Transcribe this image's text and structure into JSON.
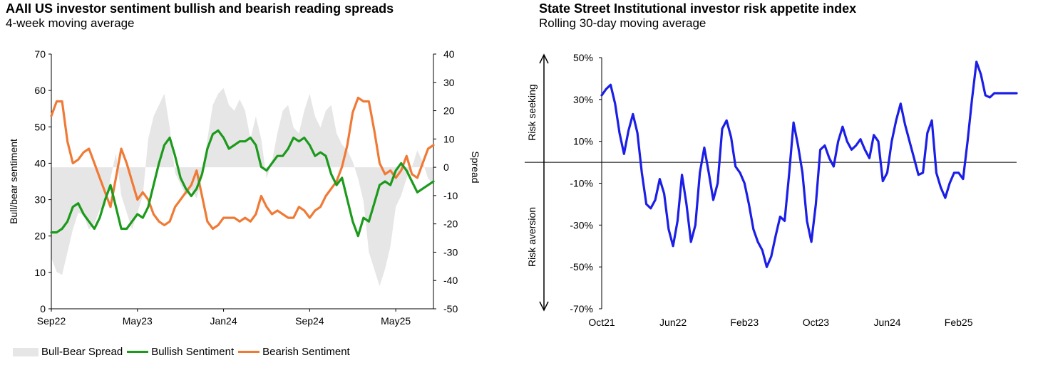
{
  "chart_data": [
    {
      "type": "line",
      "title": "AAII US investor sentiment bullish and bearish reading spreads",
      "subtitle": "4-week moving average",
      "ylabel": "Bull/bear sentiment",
      "y2label": "Spread",
      "ylim": [
        0,
        70
      ],
      "y2lim": [
        -50,
        40
      ],
      "yticks": [
        "0",
        "10",
        "20",
        "30",
        "40",
        "50",
        "60",
        "70"
      ],
      "y2ticks": [
        "-50",
        "-40",
        "-30",
        "-20",
        "-10",
        "0",
        "10",
        "20",
        "30",
        "40"
      ],
      "xticks": [
        "Sep22",
        "May23",
        "Jan24",
        "Sep24",
        "May25"
      ],
      "xtick_positions": [
        0,
        8,
        16,
        24,
        32
      ],
      "xlim": [
        0,
        35.5
      ],
      "series": [
        {
          "name": "Bull-Bear Spread",
          "color": "#e6e6e6",
          "style": "area",
          "axis": "right",
          "x": [
            0,
            0.5,
            1,
            1.5,
            2,
            2.5,
            3,
            3.5,
            4,
            4.5,
            5,
            5.5,
            6,
            6.5,
            7,
            7.5,
            8,
            8.5,
            9,
            9.5,
            10,
            10.5,
            11,
            11.5,
            12,
            12.5,
            13,
            13.5,
            14,
            14.5,
            15,
            15.5,
            16,
            16.5,
            17,
            17.5,
            18,
            18.5,
            19,
            19.5,
            20,
            20.5,
            21,
            21.5,
            22,
            22.5,
            23,
            23.5,
            24,
            24.5,
            25,
            25.5,
            26,
            26.5,
            27,
            27.5,
            28,
            28.5,
            29,
            29.5,
            30,
            30.5,
            31,
            31.5,
            32,
            32.5,
            33,
            33.5,
            34,
            34.5,
            35,
            35.5
          ],
          "values": [
            -32,
            -37,
            -38,
            -30,
            -22,
            -16,
            -17,
            -22,
            -20,
            -15,
            -14,
            -4,
            5,
            -10,
            -16,
            -22,
            -16,
            -10,
            10,
            18,
            22,
            26,
            14,
            -2,
            -6,
            -10,
            -8,
            -11,
            -4,
            10,
            22,
            26,
            28,
            22,
            20,
            24,
            20,
            10,
            18,
            10,
            -4,
            2,
            12,
            20,
            22,
            14,
            12,
            20,
            26,
            18,
            14,
            20,
            22,
            12,
            8,
            6,
            2,
            -4,
            -12,
            -30,
            -36,
            -42,
            -36,
            -28,
            -14,
            -10,
            -4,
            0,
            6,
            2,
            -4,
            -6
          ]
        },
        {
          "name": "Bullish Sentiment",
          "color": "#1c9a1c",
          "style": "line",
          "axis": "left",
          "x": [
            0,
            0.5,
            1,
            1.5,
            2,
            2.5,
            3,
            3.5,
            4,
            4.5,
            5,
            5.5,
            6,
            6.5,
            7,
            7.5,
            8,
            8.5,
            9,
            9.5,
            10,
            10.5,
            11,
            11.5,
            12,
            12.5,
            13,
            13.5,
            14,
            14.5,
            15,
            15.5,
            16,
            16.5,
            17,
            17.5,
            18,
            18.5,
            19,
            19.5,
            20,
            20.5,
            21,
            21.5,
            22,
            22.5,
            23,
            23.5,
            24,
            24.5,
            25,
            25.5,
            26,
            26.5,
            27,
            27.5,
            28,
            28.5,
            29,
            29.5,
            30,
            30.5,
            31,
            31.5,
            32,
            32.5,
            33,
            33.5,
            34,
            34.5,
            35,
            35.5
          ],
          "values": [
            21,
            21,
            22,
            24,
            28,
            29,
            26,
            24,
            22,
            25,
            30,
            34,
            28,
            22,
            22,
            24,
            26,
            25,
            28,
            34,
            40,
            45,
            47,
            42,
            36,
            33,
            31,
            33,
            37,
            44,
            48,
            49,
            47,
            44,
            45,
            46,
            46,
            47,
            45,
            39,
            38,
            40,
            42,
            42,
            44,
            47,
            46,
            47,
            45,
            42,
            43,
            42,
            37,
            34,
            36,
            30,
            24,
            20,
            25,
            24,
            29,
            34,
            35,
            34,
            38,
            40,
            38,
            35,
            32,
            33,
            34,
            35
          ]
        },
        {
          "name": "Bearish Sentiment",
          "color": "#f07a35",
          "style": "line",
          "axis": "left",
          "x": [
            0,
            0.5,
            1,
            1.5,
            2,
            2.5,
            3,
            3.5,
            4,
            4.5,
            5,
            5.5,
            6,
            6.5,
            7,
            7.5,
            8,
            8.5,
            9,
            9.5,
            10,
            10.5,
            11,
            11.5,
            12,
            12.5,
            13,
            13.5,
            14,
            14.5,
            15,
            15.5,
            16,
            16.5,
            17,
            17.5,
            18,
            18.5,
            19,
            19.5,
            20,
            20.5,
            21,
            21.5,
            22,
            22.5,
            23,
            23.5,
            24,
            24.5,
            25,
            25.5,
            26,
            26.5,
            27,
            27.5,
            28,
            28.5,
            29,
            29.5,
            30,
            30.5,
            31,
            31.5,
            32,
            32.5,
            33,
            33.5,
            34,
            34.5,
            35,
            35.5
          ],
          "values": [
            53,
            57,
            57,
            46,
            40,
            41,
            43,
            44,
            40,
            36,
            32,
            28,
            36,
            44,
            40,
            35,
            30,
            32,
            30,
            26,
            24,
            23,
            24,
            28,
            30,
            32,
            34,
            38,
            31,
            24,
            22,
            23,
            25,
            25,
            25,
            24,
            25,
            24,
            26,
            31,
            28,
            26,
            27,
            26,
            25,
            25,
            28,
            27,
            25,
            27,
            28,
            31,
            33,
            35,
            39,
            45,
            54,
            58,
            57,
            57,
            49,
            40,
            37,
            38,
            36,
            38,
            42,
            37,
            36,
            40,
            44,
            45
          ]
        }
      ],
      "legend": [
        "Bull-Bear Spread",
        "Bullish Sentiment",
        "Bearish Sentiment"
      ]
    },
    {
      "type": "line",
      "title": "State Street Institutional investor risk appetite index",
      "subtitle": "Rolling 30-day moving average",
      "ylim": [
        -70,
        50
      ],
      "yticks": [
        "50%",
        "30%",
        "10%",
        "-10%",
        "-30%",
        "-50%",
        "-70%"
      ],
      "ytick_values": [
        50,
        30,
        10,
        -10,
        -30,
        -50,
        -70
      ],
      "xticks": [
        "Oct21",
        "Jun22",
        "Feb23",
        "Oct23",
        "Jun24",
        "Feb25"
      ],
      "xtick_positions": [
        0,
        8,
        16,
        24,
        32,
        40
      ],
      "xlim": [
        0,
        46.5
      ],
      "axis_arrow_labels": {
        "top": "Risk seeking",
        "bottom": "Risk aversion"
      },
      "series": [
        {
          "name": "Risk appetite index",
          "color": "#1b1ee6",
          "x": [
            0,
            0.5,
            1,
            1.5,
            2,
            2.5,
            3,
            3.5,
            4,
            4.5,
            5,
            5.5,
            6,
            6.5,
            7,
            7.5,
            8,
            8.5,
            9,
            9.5,
            10,
            10.5,
            11,
            11.5,
            12,
            12.5,
            13,
            13.5,
            14,
            14.5,
            15,
            15.5,
            16,
            16.5,
            17,
            17.5,
            18,
            18.5,
            19,
            19.5,
            20,
            20.5,
            21,
            21.5,
            22,
            22.5,
            23,
            23.5,
            24,
            24.5,
            25,
            25.5,
            26,
            26.5,
            27,
            27.5,
            28,
            28.5,
            29,
            29.5,
            30,
            30.5,
            31,
            31.5,
            32,
            32.5,
            33,
            33.5,
            34,
            34.5,
            35,
            35.5,
            36,
            36.5,
            37,
            37.5,
            38,
            38.5,
            39,
            39.5,
            40,
            40.5,
            41,
            41.5,
            42,
            42.5,
            43,
            43.5,
            44,
            44.5,
            45,
            45.5,
            46,
            46.5
          ],
          "values": [
            32,
            35,
            37,
            28,
            14,
            4,
            15,
            23,
            14,
            -5,
            -20,
            -22,
            -18,
            -8,
            -15,
            -32,
            -40,
            -28,
            -6,
            -20,
            -38,
            -30,
            -5,
            7,
            -5,
            -18,
            -10,
            16,
            20,
            12,
            -2,
            -5,
            -10,
            -20,
            -32,
            -38,
            -42,
            -50,
            -45,
            -35,
            -26,
            -28,
            -6,
            19,
            8,
            -5,
            -28,
            -38,
            -20,
            6,
            8,
            2,
            -2,
            10,
            17,
            10,
            6,
            8,
            11,
            6,
            2,
            13,
            10,
            -9,
            -5,
            10,
            20,
            28,
            18,
            10,
            2,
            -6,
            -5,
            14,
            20,
            -5,
            -12,
            -17,
            -10,
            -5,
            -5,
            -8,
            10,
            30,
            48,
            42,
            32,
            31,
            33,
            33,
            33,
            33,
            33,
            33
          ]
        }
      ]
    }
  ]
}
